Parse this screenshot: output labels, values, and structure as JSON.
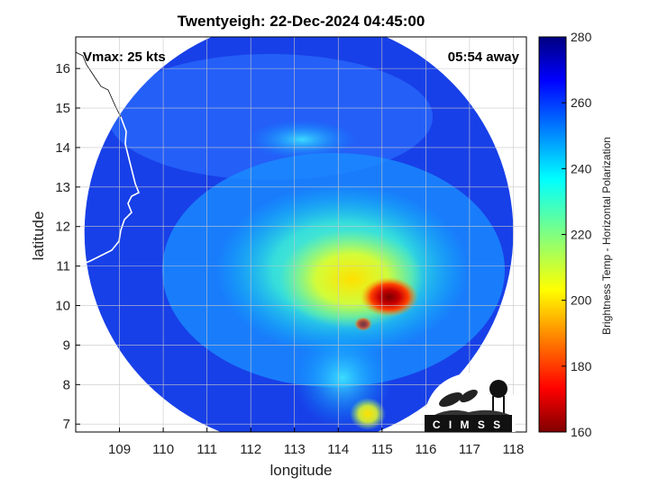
{
  "chart_data": {
    "type": "heatmap",
    "title": "Twentyeigh: 22-Dec-2024 04:45:00",
    "xlabel": "longitude",
    "ylabel": "latitude",
    "xlim": [
      108.0,
      118.3
    ],
    "ylim": [
      6.8,
      16.8
    ],
    "xticks": [
      "109",
      "110",
      "111",
      "112",
      "113",
      "114",
      "115",
      "116",
      "117",
      "118"
    ],
    "yticks": [
      "7",
      "8",
      "9",
      "10",
      "11",
      "12",
      "13",
      "14",
      "15",
      "16"
    ],
    "grid": true,
    "annotations": {
      "vmax": "Vmax: 25 kts",
      "time_away": "05:54 away"
    },
    "colorbar": {
      "label": "Brightness Temp - Horizontal Polarization",
      "min": 160,
      "max": 280,
      "ticks": [
        "160",
        "180",
        "200",
        "220",
        "240",
        "260",
        "280"
      ],
      "colormap": "jet"
    },
    "swath": {
      "center_lon": 113.1,
      "center_lat": 11.85,
      "radius_deg": 4.9
    },
    "storm": {
      "coldest_center": {
        "lon": 115.2,
        "lat": 10.3
      },
      "min_temp": 160,
      "background_temp": 268
    }
  },
  "logo": {
    "text": "C I M S S"
  }
}
